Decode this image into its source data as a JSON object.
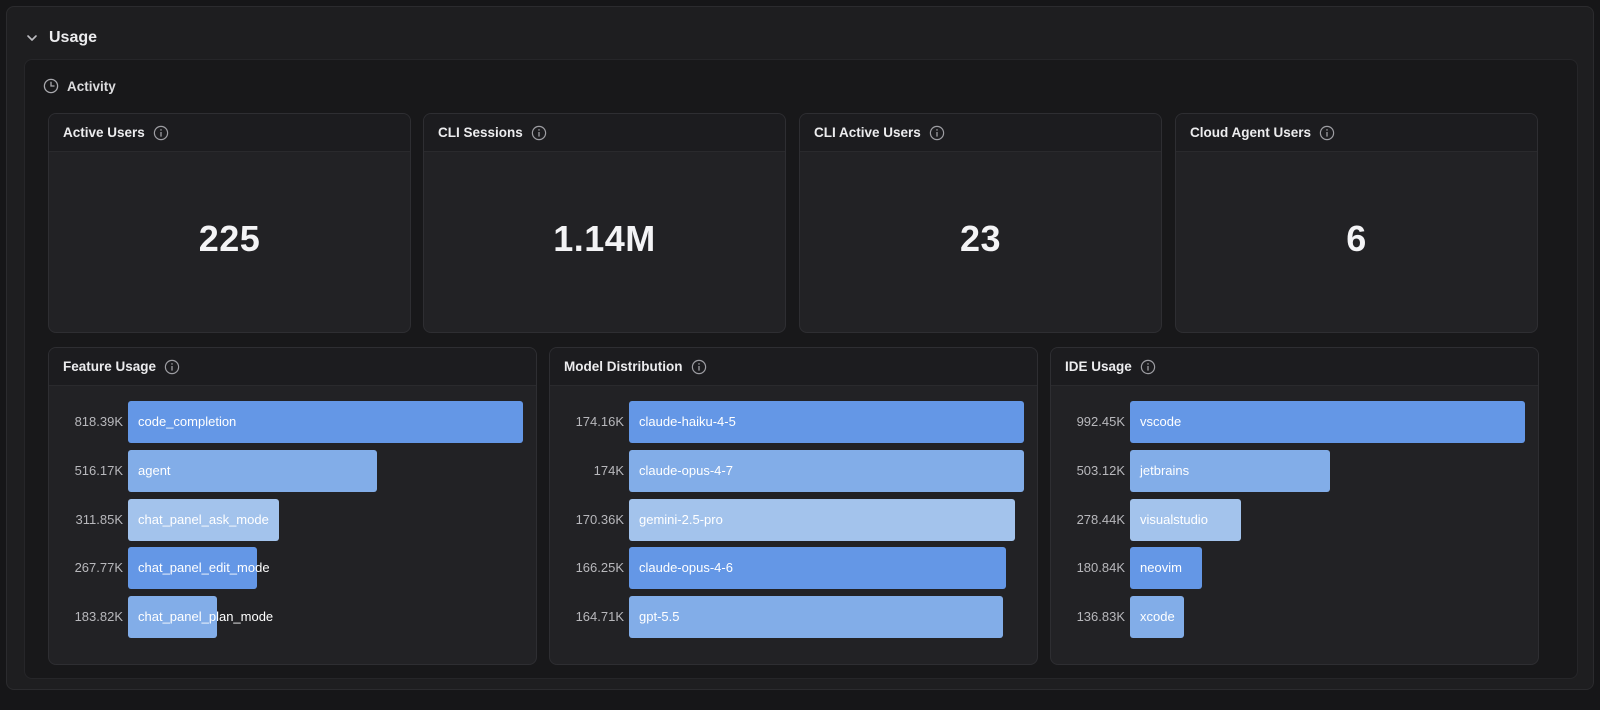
{
  "usage": {
    "title": "Usage"
  },
  "activity": {
    "title": "Activity"
  },
  "metrics": [
    {
      "title": "Active Users",
      "value": "225"
    },
    {
      "title": "CLI Sessions",
      "value": "1.14M"
    },
    {
      "title": "CLI Active Users",
      "value": "23"
    },
    {
      "title": "Cloud Agent Users",
      "value": "6"
    }
  ],
  "colors": {
    "bar_1": "#6497e6",
    "bar_2": "#82ade8",
    "bar_3": "#a3c3ec"
  },
  "chart_data": [
    {
      "type": "bar",
      "title": "Feature Usage",
      "orientation": "horizontal",
      "categories": [
        "code_completion",
        "agent",
        "chat_panel_ask_mode",
        "chat_panel_edit_mode",
        "chat_panel_plan_mode"
      ],
      "values": [
        818390,
        516170,
        311850,
        267770,
        183820
      ],
      "value_labels": [
        "818.39K",
        "516.17K",
        "311.85K",
        "267.77K",
        "183.82K"
      ],
      "xlim": [
        0,
        818390
      ]
    },
    {
      "type": "bar",
      "title": "Model Distribution",
      "orientation": "horizontal",
      "categories": [
        "claude-haiku-4-5",
        "claude-opus-4-7",
        "gemini-2.5-pro",
        "claude-opus-4-6",
        "gpt-5.5"
      ],
      "values": [
        174160,
        174000,
        170360,
        166250,
        164710
      ],
      "value_labels": [
        "174.16K",
        "174K",
        "170.36K",
        "166.25K",
        "164.71K"
      ],
      "xlim": [
        0,
        174160
      ]
    },
    {
      "type": "bar",
      "title": "IDE Usage",
      "orientation": "horizontal",
      "categories": [
        "vscode",
        "jetbrains",
        "visualstudio",
        "neovim",
        "xcode"
      ],
      "values": [
        992450,
        503120,
        278440,
        180840,
        136830
      ],
      "value_labels": [
        "992.45K",
        "503.12K",
        "278.44K",
        "180.84K",
        "136.83K"
      ],
      "xlim": [
        0,
        992450
      ]
    }
  ]
}
